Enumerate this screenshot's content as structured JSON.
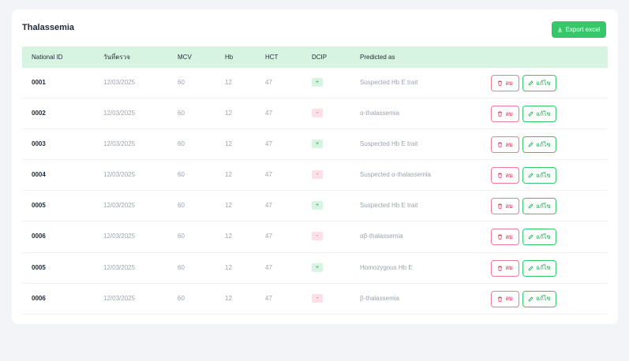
{
  "page": {
    "title": "Thalassemia",
    "export_label": "Export excel"
  },
  "table": {
    "headers": [
      "National ID",
      "วันที่ตรวจ",
      "MCV",
      "Hb",
      "HCT",
      "DCIP",
      "Predicted as"
    ],
    "delete_label": "ลบ",
    "edit_label": "แก้ไข",
    "rows": [
      {
        "id": "0001",
        "date": "12/03/2025",
        "mcv": "60",
        "hb": "12",
        "hct": "47",
        "dcip": "+",
        "predicted": "Suspected Hb E trait"
      },
      {
        "id": "0002",
        "date": "12/03/2025",
        "mcv": "60",
        "hb": "12",
        "hct": "47",
        "dcip": "-",
        "predicted": "α-thalassemia"
      },
      {
        "id": "0003",
        "date": "12/03/2025",
        "mcv": "60",
        "hb": "12",
        "hct": "47",
        "dcip": "+",
        "predicted": "Suspected Hb E trait"
      },
      {
        "id": "0004",
        "date": "12/03/2025",
        "mcv": "60",
        "hb": "12",
        "hct": "47",
        "dcip": "-",
        "predicted": "Suspected α-thalassemia"
      },
      {
        "id": "0005",
        "date": "12/03/2025",
        "mcv": "60",
        "hb": "12",
        "hct": "47",
        "dcip": "+",
        "predicted": "Suspected Hb E trait"
      },
      {
        "id": "0006",
        "date": "12/03/2025",
        "mcv": "60",
        "hb": "12",
        "hct": "47",
        "dcip": "-",
        "predicted": "αβ-thalassemia"
      },
      {
        "id": "0005",
        "date": "12/03/2025",
        "mcv": "60",
        "hb": "12",
        "hct": "47",
        "dcip": "+",
        "predicted": "Homozygous Hb E"
      },
      {
        "id": "0006",
        "date": "12/03/2025",
        "mcv": "60",
        "hb": "12",
        "hct": "47",
        "dcip": "-",
        "predicted": "β-thalassemia"
      }
    ]
  },
  "colors": {
    "accent": "#37c76b",
    "header_bg": "#d7f4e1",
    "danger": "#e11d48"
  },
  "icons": {
    "export": "download-icon",
    "delete": "trash-icon",
    "edit": "pencil-icon"
  }
}
